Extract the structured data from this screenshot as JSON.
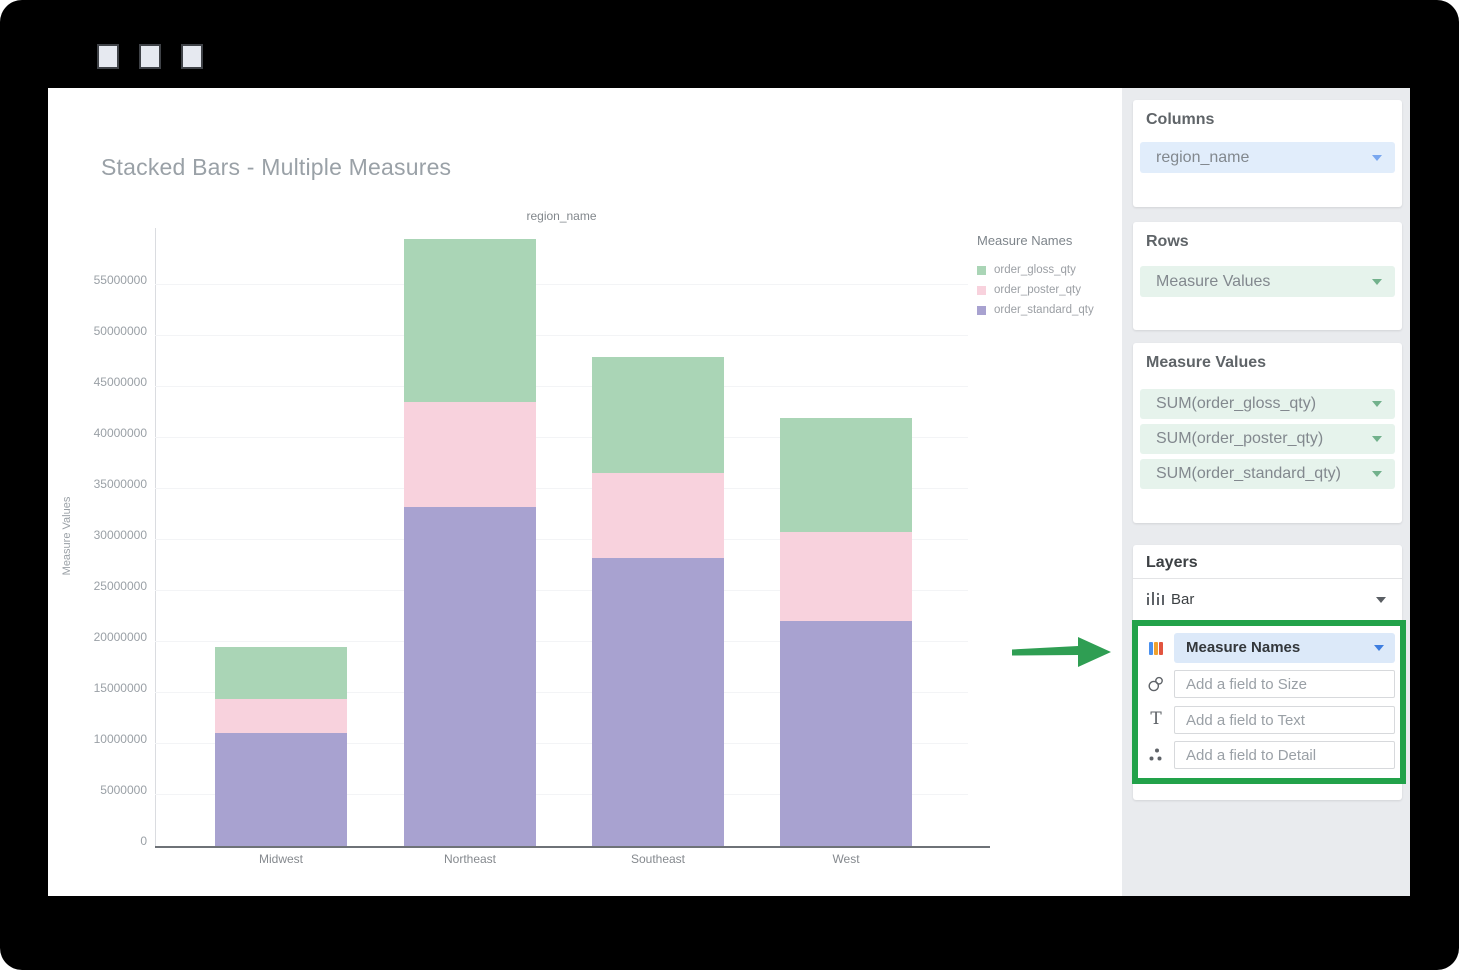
{
  "window": {
    "controls": [
      "window-button-1",
      "window-button-2",
      "window-button-3"
    ]
  },
  "chart": {
    "title": "Stacked Bars - Multiple Measures",
    "column_header": "region_name",
    "y_axis_title": "Measure Values",
    "legend_title": "Measure Names"
  },
  "chart_data": {
    "type": "bar",
    "stacked": true,
    "title": "Stacked Bars - Multiple Measures",
    "xlabel": "region_name",
    "ylabel": "Measure Values",
    "categories": [
      "Midwest",
      "Northeast",
      "Southeast",
      "West"
    ],
    "series": [
      {
        "name": "order_gloss_qty",
        "color": "#aad5b6",
        "values": [
          5100000,
          16000000,
          11300000,
          11200000
        ]
      },
      {
        "name": "order_poster_qty",
        "color": "#f8d2dd",
        "values": [
          3300000,
          10300000,
          8400000,
          8700000
        ]
      },
      {
        "name": "order_standard_qty",
        "color": "#a8a2d0",
        "values": [
          11100000,
          33200000,
          28200000,
          22100000
        ]
      }
    ],
    "stack_bottom_to_top": [
      "order_standard_qty",
      "order_poster_qty",
      "order_gloss_qty"
    ],
    "totals": [
      19500000,
      59500000,
      47900000,
      42000000
    ],
    "ylim": [
      0,
      60500000
    ],
    "ytick_step": 5000000,
    "yticks": [
      "0",
      "5000000",
      "10000000",
      "15000000",
      "20000000",
      "25000000",
      "30000000",
      "35000000",
      "40000000",
      "45000000",
      "50000000",
      "55000000"
    ],
    "grid": true,
    "legend_position": "right",
    "legend_title": "Measure Names"
  },
  "sidebar": {
    "columns": {
      "title": "Columns",
      "pill": "region_name"
    },
    "rows": {
      "title": "Rows",
      "pill": "Measure Values"
    },
    "measure_values": {
      "title": "Measure Values",
      "pills": [
        "SUM(order_gloss_qty)",
        "SUM(order_poster_qty)",
        "SUM(order_standard_qty)"
      ]
    },
    "layers": {
      "title": "Layers",
      "layer_type": "Bar",
      "color_pill": "Measure Names",
      "size_placeholder": "Add a field to Size",
      "text_placeholder": "Add a field to Text",
      "detail_placeholder": "Add a field to Detail"
    }
  },
  "colors": {
    "arrow_green": "#2f9e53",
    "highlight_border_green": "#22a24a",
    "pill_blue_bg": "#e1edfb",
    "pill_green_bg": "#e6f3ec",
    "selected_pill_blue_bg": "#dce9f9",
    "sidebar_bg": "#e9ebee",
    "icon_blue": "#4a90ee",
    "icon_orange": "#f0a12e",
    "icon_red": "#e2543f"
  }
}
